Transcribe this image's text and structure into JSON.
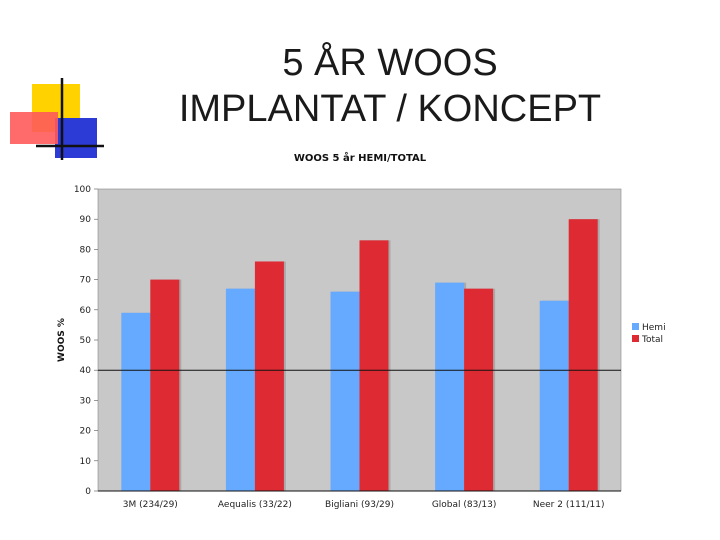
{
  "slide": {
    "title_line1": "5 ÅR WOOS",
    "title_line2": "IMPLANTAT / KONCEPT"
  },
  "colors": {
    "plot_bg": "#c8c8c8",
    "hemi": "#66aaff",
    "total": "#dd2a33",
    "decor_yellow": "#ffd200",
    "decor_red": "#ff5a5a",
    "decor_blue": "#2d3bd6"
  },
  "chart_data": {
    "type": "bar",
    "title": "WOOS 5 år HEMI/TOTAL",
    "xlabel": "",
    "ylabel": "WOOS %",
    "ylim": [
      0,
      100
    ],
    "yticks": [
      0,
      10,
      20,
      30,
      40,
      50,
      60,
      70,
      80,
      90,
      100
    ],
    "reference_line": 40,
    "categories": [
      "3M (234/29)",
      "Aequalis (33/22)",
      "Bigliani (93/29)",
      "Global (83/13)",
      "Neer 2 (111/11)"
    ],
    "series": [
      {
        "name": "Hemi",
        "values": [
          59,
          67,
          66,
          69,
          63
        ]
      },
      {
        "name": "Total",
        "values": [
          70,
          76,
          83,
          67,
          90
        ]
      }
    ],
    "grid": false,
    "legend": "right"
  }
}
